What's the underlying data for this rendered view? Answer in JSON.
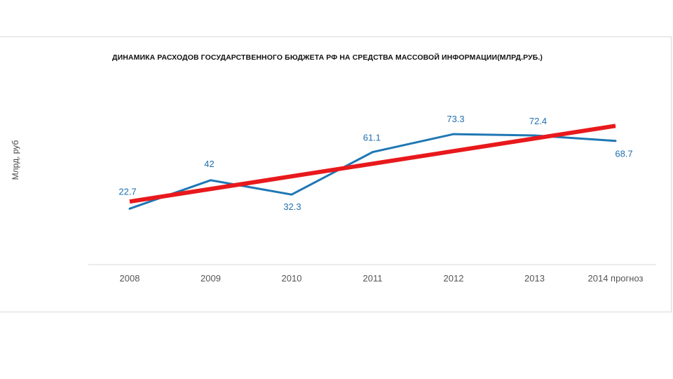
{
  "chart_data": {
    "type": "line",
    "title": "ДИНАМИКА РАСХОДОВ ГОСУДАРСТВЕННОГО БЮДЖЕТА РФ НА СРЕДСТВА МАССОВОЙ ИНФОРМАЦИИ(МЛРД.РУБ.)",
    "ylabel": "Млрд, руб",
    "xlabel": "",
    "categories": [
      "2008",
      "2009",
      "2010",
      "2011",
      "2012",
      "2013",
      "2014 прогноз"
    ],
    "series": [
      {
        "values": [
          22.7,
          42,
          32.3,
          61.1,
          73.3,
          72.4,
          68.7
        ],
        "data_labels": [
          "22.7",
          "42",
          "32.3",
          "61.1",
          "73.3",
          "72.4",
          "68.7"
        ],
        "color": "#1f77b4"
      }
    ],
    "trendline": {
      "color": "#e8191c",
      "type": "linear"
    },
    "ylim": [
      0,
      100
    ],
    "grid": false,
    "legend": "none"
  }
}
